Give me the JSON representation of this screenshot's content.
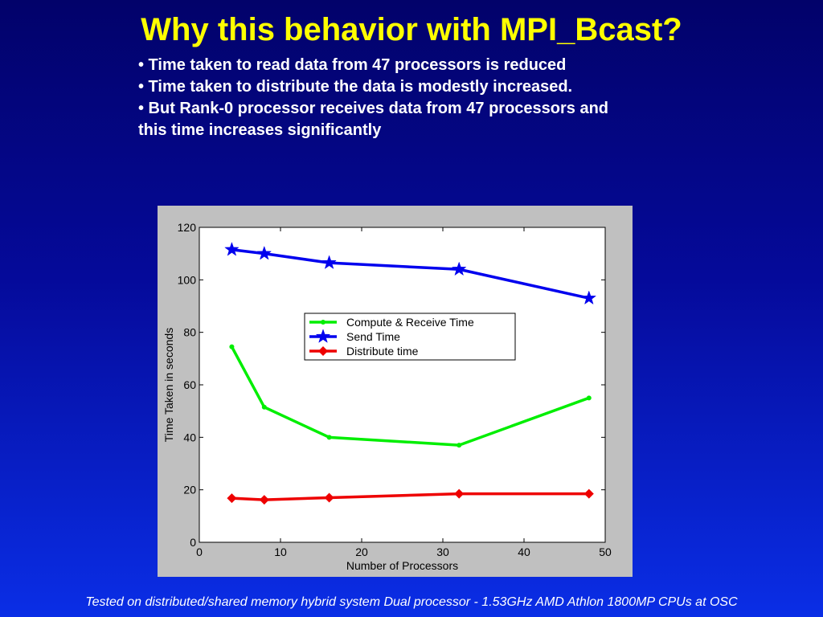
{
  "slide": {
    "title": "Why this behavior with MPI_Bcast?",
    "bullets": [
      "• Time taken to read data from 47 processors is reduced",
      "• Time taken to distribute the data is modestly increased.",
      "• But Rank-0 processor receives data from 47 processors and this time increases significantly"
    ],
    "footer": "Tested on distributed/shared memory hybrid system Dual processor - 1.53GHz AMD Athlon 1800MP CPUs at OSC"
  },
  "chart_data": {
    "type": "line",
    "title": "",
    "xlabel": "Number of Processors",
    "ylabel": "Time Taken in seconds",
    "xlim": [
      0,
      50
    ],
    "ylim": [
      0,
      120
    ],
    "xticks": [
      0,
      10,
      20,
      30,
      40,
      50
    ],
    "yticks": [
      0,
      20,
      40,
      60,
      80,
      100,
      120
    ],
    "grid": false,
    "legend_position": "center",
    "x": [
      4,
      8,
      16,
      32,
      48
    ],
    "series": [
      {
        "name": "Compute & Receive Time",
        "color": "#00ee00",
        "marker": "dot",
        "values": [
          74.5,
          51.5,
          40,
          37,
          55
        ]
      },
      {
        "name": "Send Time",
        "color": "#0000ee",
        "marker": "star",
        "values": [
          111.5,
          110,
          106.5,
          104,
          93
        ]
      },
      {
        "name": "Distribute time",
        "color": "#ee0000",
        "marker": "diamond",
        "values": [
          16.8,
          16.2,
          17,
          18.5,
          18.5
        ]
      }
    ]
  }
}
